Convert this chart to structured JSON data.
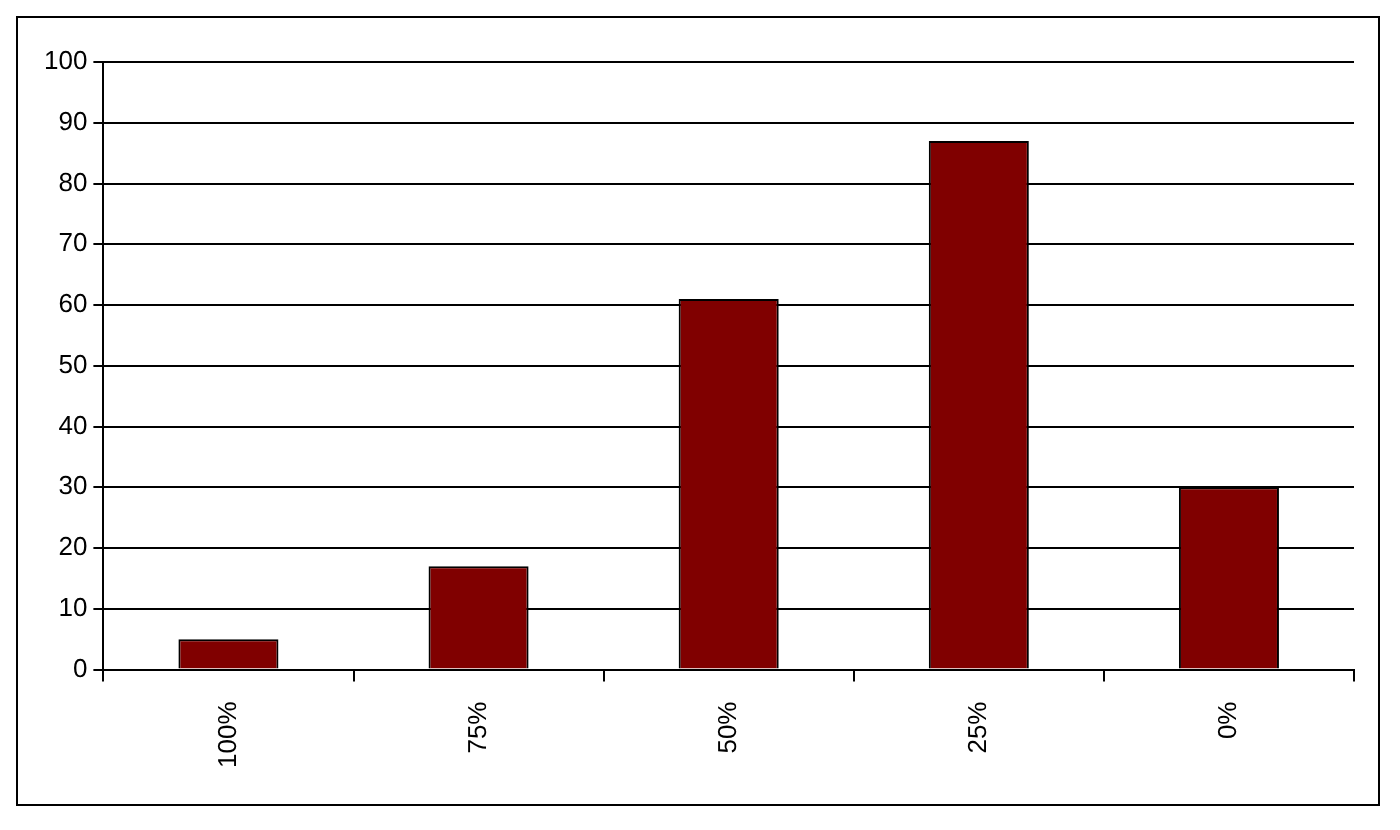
{
  "chart_data": {
    "type": "bar",
    "categories": [
      "100%",
      "75%",
      "50%",
      "25%",
      "0%"
    ],
    "series": [
      {
        "color": "#800000",
        "values": [
          5,
          17,
          61,
          87,
          30
        ]
      }
    ],
    "ylim": [
      0,
      100
    ],
    "yticks": [
      0,
      10,
      20,
      30,
      40,
      50,
      60,
      70,
      80,
      90,
      100
    ],
    "grid": "y"
  }
}
